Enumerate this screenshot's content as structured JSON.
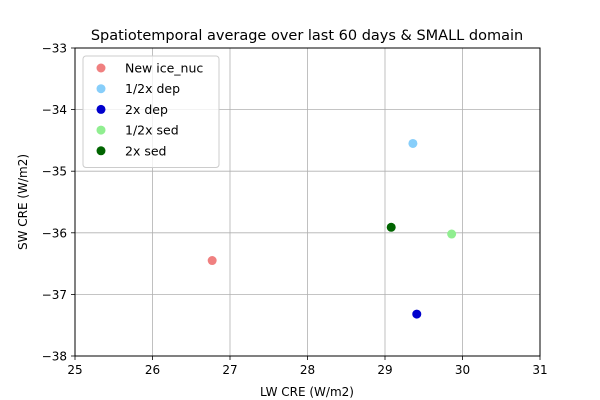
{
  "chart_data": {
    "type": "scatter",
    "title": "Spatiotemporal average over last 60 days & SMALL domain",
    "xlabel": "LW CRE (W/m2)",
    "ylabel": "SW CRE (W/m2)",
    "xlim": [
      25,
      31
    ],
    "ylim": [
      -38,
      -33
    ],
    "xticks": [
      25,
      26,
      27,
      28,
      29,
      30,
      31
    ],
    "yticks": [
      -38,
      -37,
      -36,
      -35,
      -34,
      -33
    ],
    "xtick_labels": [
      "25",
      "26",
      "27",
      "28",
      "29",
      "30",
      "31"
    ],
    "ytick_labels": [
      "−38",
      "−37",
      "−36",
      "−35",
      "−34",
      "−33"
    ],
    "grid": true,
    "legend_position": "upper-left",
    "series": [
      {
        "name": "New ice_nuc",
        "color": "#f08080",
        "points": [
          {
            "x": 26.77,
            "y": -36.45
          }
        ]
      },
      {
        "name": "1/2x dep",
        "color": "#87cefa",
        "points": [
          {
            "x": 29.36,
            "y": -34.55
          }
        ]
      },
      {
        "name": "2x dep",
        "color": "#0000cd",
        "points": [
          {
            "x": 29.41,
            "y": -37.32
          }
        ]
      },
      {
        "name": "1/2x sed",
        "color": "#90ee90",
        "points": [
          {
            "x": 29.86,
            "y": -36.02
          }
        ]
      },
      {
        "name": "2x sed",
        "color": "#006400",
        "points": [
          {
            "x": 29.08,
            "y": -35.91
          }
        ]
      }
    ]
  }
}
